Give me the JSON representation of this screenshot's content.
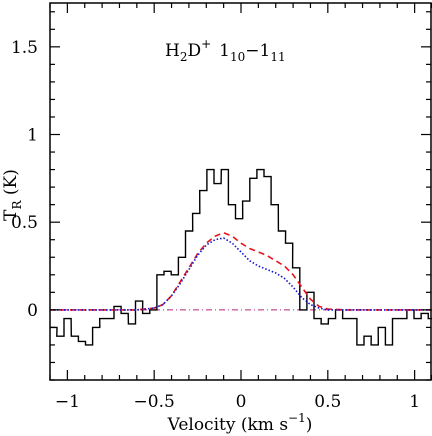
{
  "chart_data": {
    "type": "line",
    "title": "",
    "annotation": {
      "base": "H",
      "base_sub": "2",
      "mid": "D",
      "mid_sup": "+",
      "t1": "1",
      "t1_sub": "10",
      "dash": "−",
      "t2": "1",
      "t2_sub": "11"
    },
    "xlabel": {
      "text": "Velocity (km s",
      "sup": "−1",
      "close": ")"
    },
    "ylabel": {
      "text": "T",
      "sub": "R",
      "unit": " (K)"
    },
    "xlim": [
      -1.1,
      1.1
    ],
    "ylim": [
      -0.4,
      1.75
    ],
    "xticks": [
      -1,
      -0.5,
      0,
      0.5,
      1
    ],
    "xtick_labels": [
      "−1",
      "−0.5",
      "0",
      "0.5",
      "1"
    ],
    "yticks": [
      0,
      0.5,
      1,
      1.5
    ],
    "ytick_labels": [
      "0",
      "0.5",
      "1",
      "1.5"
    ],
    "grid": false,
    "series": [
      {
        "style": "histogram",
        "color": "#000000",
        "dash": "solid",
        "bin_width": 0.0412,
        "x": [
          -1.08,
          -1.04,
          -0.999,
          -0.957,
          -0.916,
          -0.875,
          -0.834,
          -0.793,
          -0.752,
          -0.711,
          -0.67,
          -0.628,
          -0.587,
          -0.546,
          -0.505,
          -0.464,
          -0.423,
          -0.381,
          -0.34,
          -0.299,
          -0.258,
          -0.217,
          -0.176,
          -0.135,
          -0.093,
          -0.052,
          -0.011,
          0.03,
          0.071,
          0.112,
          0.153,
          0.194,
          0.236,
          0.277,
          0.318,
          0.359,
          0.4,
          0.441,
          0.482,
          0.524,
          0.565,
          0.606,
          0.647,
          0.688,
          0.729,
          0.77,
          0.811,
          0.852,
          0.893,
          0.935,
          0.976,
          1.017,
          1.058,
          1.099
        ],
        "y": [
          -0.1,
          -0.15,
          -0.05,
          -0.15,
          -0.18,
          -0.2,
          -0.1,
          -0.05,
          -0.05,
          0.02,
          -0.02,
          -0.08,
          0.05,
          -0.02,
          0.0,
          0.2,
          0.22,
          0.2,
          0.3,
          0.45,
          0.55,
          0.68,
          0.8,
          0.72,
          0.8,
          0.6,
          0.52,
          0.62,
          0.75,
          0.8,
          0.76,
          0.6,
          0.45,
          0.38,
          0.24,
          0.0,
          0.1,
          -0.05,
          -0.08,
          -0.05,
          0.0,
          -0.05,
          -0.05,
          -0.2,
          -0.15,
          -0.2,
          -0.1,
          -0.2,
          -0.05,
          -0.05,
          0.0,
          -0.05,
          -0.02,
          -0.05
        ]
      },
      {
        "style": "line",
        "color": "#e8141c",
        "dash": "dashed",
        "x": [
          -1.1,
          -0.6,
          -0.5,
          -0.45,
          -0.4,
          -0.35,
          -0.3,
          -0.25,
          -0.2,
          -0.15,
          -0.1,
          -0.05,
          0.0,
          0.05,
          0.1,
          0.15,
          0.2,
          0.25,
          0.3,
          0.35,
          0.4,
          0.45,
          0.5,
          0.6,
          1.1
        ],
        "y": [
          0,
          0,
          0.01,
          0.03,
          0.08,
          0.16,
          0.24,
          0.32,
          0.38,
          0.42,
          0.44,
          0.42,
          0.38,
          0.35,
          0.33,
          0.31,
          0.28,
          0.25,
          0.2,
          0.13,
          0.06,
          0.02,
          0.005,
          0,
          0
        ]
      },
      {
        "style": "line",
        "color": "#1414d2",
        "dash": "dotted",
        "x": [
          -1.1,
          -0.6,
          -0.5,
          -0.45,
          -0.4,
          -0.35,
          -0.3,
          -0.25,
          -0.2,
          -0.15,
          -0.1,
          -0.05,
          0.0,
          0.05,
          0.1,
          0.15,
          0.2,
          0.25,
          0.3,
          0.35,
          0.4,
          0.45,
          0.5,
          0.6,
          1.1
        ],
        "y": [
          0,
          0,
          0.01,
          0.03,
          0.08,
          0.15,
          0.23,
          0.31,
          0.37,
          0.4,
          0.41,
          0.38,
          0.33,
          0.28,
          0.25,
          0.23,
          0.21,
          0.18,
          0.13,
          0.07,
          0.03,
          0.01,
          0.0,
          0,
          0
        ]
      }
    ]
  }
}
